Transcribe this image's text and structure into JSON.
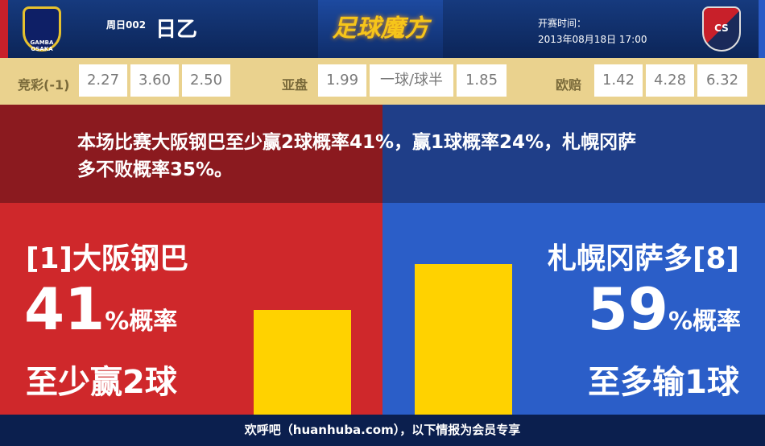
{
  "header": {
    "match_no": "周日002",
    "league": "日乙",
    "logo_text": "足球魔方",
    "kickoff_label": "开赛时间：",
    "kickoff_time": "2013年08月18日 17:00",
    "home_crest": "GAMBA OSAKA",
    "away_crest": "CS"
  },
  "odds": {
    "jingcai": {
      "label": "竞彩(-1)",
      "values": [
        "2.27",
        "3.60",
        "2.50"
      ]
    },
    "asian": {
      "label": "亚盘",
      "home": "1.99",
      "line": "一球/球半",
      "away": "1.85"
    },
    "euro": {
      "label": "欧赔",
      "values": [
        "1.42",
        "4.28",
        "6.32"
      ]
    }
  },
  "banner": {
    "text": "本场比赛大阪钢巴至少赢2球概率41%，赢1球概率24%，札幌冈萨多不败概率35%。"
  },
  "home": {
    "team": "[1]大阪钢巴",
    "pct": "41",
    "pct_suffix": "%概率",
    "desc": "至少赢2球",
    "bar_level": 0.41,
    "color": "#cf282b"
  },
  "away": {
    "team": "札幌冈萨多[8]",
    "pct": "59",
    "pct_suffix": "%概率",
    "desc": "至多输1球",
    "bar_level": 0.59,
    "color": "#2b5ec8"
  },
  "footer": {
    "text": "欢呼吧（huanhuba.com），以下情报为会员专享"
  }
}
